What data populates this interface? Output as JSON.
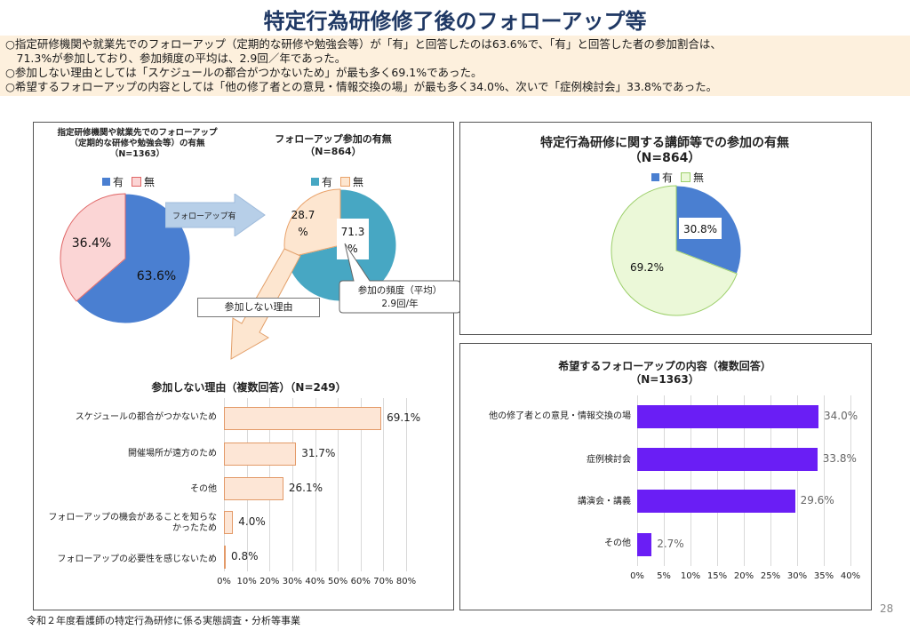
{
  "page": {
    "title": "特定行為研修修了後のフォローアップ等",
    "bullets": [
      "○指定研修機関や就業先でのフォローアップ（定期的な研修や勉強会等）が「有」と回答したのは63.6%で、「有」と回答した者の参加割合は、",
      "　71.3%が参加しており、参加頻度の平均は、2.9回／年であった。",
      "○参加しない理由としては「スケジュールの都合がつかないため」が最も多く69.1%であった。",
      "○希望するフォローアップの内容としては「他の修了者との意見・情報交換の場」が最も多く34.0%、次いで「症例検討会」33.8%であった。"
    ],
    "footer": "令和２年度看護師の特定行為研修に係る実態調査・分析等事業",
    "page_number": "28"
  },
  "arrows": {
    "followup_yes": "フォローアップ有",
    "not_participating_reason": "参加しない理由"
  },
  "callout": {
    "line1": "参加の頻度（平均）",
    "line2": "2.9回/年"
  },
  "colors": {
    "blue": "#4a7fd1",
    "pink": "#fbd5d5",
    "teal": "#47a7c3",
    "peach": "#fde6d0",
    "green": "#ebf8d8",
    "purple": "#6a1ef5",
    "bar_peach": "#fde6d6"
  },
  "chart_data": [
    {
      "type": "pie",
      "title_lines": [
        "指定研修機関や就業先でのフォローアップ",
        "（定期的な研修や勉強会等）の有無",
        "（N=1363）"
      ],
      "legend": [
        "有",
        "無"
      ],
      "slices": [
        {
          "label": "有",
          "value": 63.6,
          "text": "63.6%"
        },
        {
          "label": "無",
          "value": 36.4,
          "text": "36.4%"
        }
      ]
    },
    {
      "type": "pie",
      "title_lines": [
        "フォローアップ参加の有無",
        "（N=864）"
      ],
      "legend": [
        "有",
        "無"
      ],
      "slices": [
        {
          "label": "有",
          "value": 71.3,
          "text_lines": [
            "71.3",
            "%"
          ]
        },
        {
          "label": "無",
          "value": 28.7,
          "text_lines": [
            "28.7",
            "%"
          ]
        }
      ]
    },
    {
      "type": "pie",
      "title_lines": [
        "特定行為研修に関する講師等での参加の有無",
        "（N=864）"
      ],
      "legend": [
        "有",
        "無"
      ],
      "slices": [
        {
          "label": "有",
          "value": 30.8,
          "text": "30.8%"
        },
        {
          "label": "無",
          "value": 69.2,
          "text": "69.2%"
        }
      ]
    },
    {
      "type": "bar",
      "orientation": "horizontal",
      "title": "参加しない理由（複数回答）（N=249）",
      "categories": [
        "スケジュールの都合がつかないため",
        "開催場所が遠方のため",
        "その他",
        "フォローアップの機会があることを知らなかったため",
        "フォローアップの必要性を感じないため"
      ],
      "category_lines": [
        [
          "スケジュールの都合がつかないため"
        ],
        [
          "開催場所が遠方のため"
        ],
        [
          "その他"
        ],
        [
          "フォローアップの機会があることを知らな",
          "かったため"
        ],
        [
          "フォローアップの必要性を感じないため"
        ]
      ],
      "values": [
        69.1,
        31.7,
        26.1,
        4.0,
        0.8
      ],
      "value_labels": [
        "69.1%",
        "31.7%",
        "26.1%",
        "4.0%",
        "0.8%"
      ],
      "xlim": [
        0,
        80
      ],
      "ticks": [
        "0%",
        "10%",
        "20%",
        "30%",
        "40%",
        "50%",
        "60%",
        "70%",
        "80%"
      ]
    },
    {
      "type": "bar",
      "orientation": "horizontal",
      "title_lines": [
        "希望するフォローアップの内容（複数回答）",
        "（N=1363）"
      ],
      "categories": [
        "他の修了者との意見・情報交換の場",
        "症例検討会",
        "講演会・講義",
        "その他"
      ],
      "values": [
        34.0,
        33.8,
        29.6,
        2.7
      ],
      "value_labels": [
        "34.0%",
        "33.8%",
        "29.6%",
        "2.7%"
      ],
      "xlim": [
        0,
        40
      ],
      "ticks": [
        "0%",
        "5%",
        "10%",
        "15%",
        "20%",
        "25%",
        "30%",
        "35%",
        "40%"
      ]
    }
  ]
}
